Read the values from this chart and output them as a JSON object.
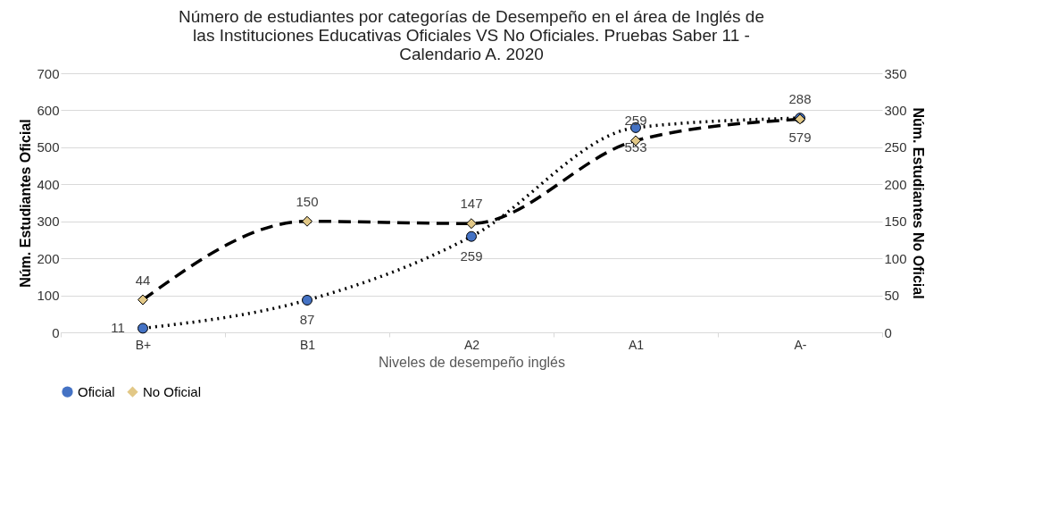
{
  "chart_data": {
    "type": "line",
    "title": "Número de estudiantes por categorías de Desempeño en el área de Inglés de las Instituciones Educativas Oficiales VS No Oficiales. Pruebas Saber 11 - Calendario A. 2020",
    "xlabel": "Niveles de desempeño inglés",
    "ylabel": "Núm. Estudiantes Oficial",
    "y2label": "Núm. Estudiantes No Oficial",
    "categories": [
      "B+",
      "B1",
      "A2",
      "A1",
      "A-"
    ],
    "series": [
      {
        "name": "Oficial",
        "color": "#4472c4",
        "values": [
          11,
          87,
          259,
          553,
          579
        ],
        "line_style": "dotted",
        "marker": "circle"
      },
      {
        "name": "No Oficial",
        "color": "#e2c887",
        "values": [
          44,
          150,
          147,
          259,
          288
        ],
        "line_style": "dashed",
        "marker": "diamond",
        "axis": "y2"
      }
    ],
    "ylim": [
      0,
      700
    ],
    "yticks": [
      0,
      100,
      200,
      300,
      400,
      500,
      600,
      700
    ],
    "y2lim": [
      0,
      350
    ],
    "y2ticks": [
      0,
      50,
      100,
      150,
      200,
      250,
      300,
      350
    ],
    "data_labels": true,
    "grid": "y",
    "legend": "bottom"
  }
}
